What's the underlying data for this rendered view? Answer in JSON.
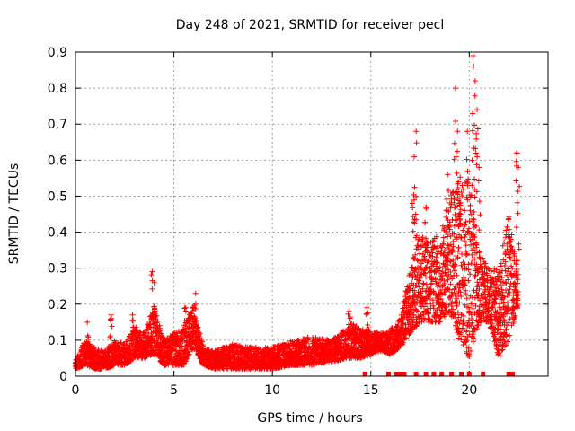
{
  "chart_data": {
    "type": "scatter",
    "title": "Day 248 of 2021, SRMTID for receiver pecl",
    "xlabel": "GPS time / hours",
    "ylabel": "SRMTID / TECUs",
    "xlim": [
      0,
      24
    ],
    "ylim": [
      0,
      0.9
    ],
    "grid": true,
    "xticks": [
      "0",
      "5",
      "10",
      "15",
      "20"
    ],
    "yticks": [
      "0",
      "0.1",
      "0.2",
      "0.3",
      "0.4",
      "0.5",
      "0.6",
      "0.7",
      "0.8",
      "0.9"
    ],
    "series_color": "#ff0000",
    "envelope": [
      {
        "x": 0.0,
        "lo": 0.02,
        "hi": 0.05
      },
      {
        "x": 0.5,
        "lo": 0.03,
        "hi": 0.1
      },
      {
        "x": 1.0,
        "lo": 0.02,
        "hi": 0.08
      },
      {
        "x": 1.5,
        "lo": 0.02,
        "hi": 0.07
      },
      {
        "x": 2.0,
        "lo": 0.03,
        "hi": 0.1
      },
      {
        "x": 2.5,
        "lo": 0.03,
        "hi": 0.09
      },
      {
        "x": 3.0,
        "lo": 0.05,
        "hi": 0.14
      },
      {
        "x": 3.5,
        "lo": 0.05,
        "hi": 0.12
      },
      {
        "x": 4.0,
        "lo": 0.06,
        "hi": 0.2
      },
      {
        "x": 4.5,
        "lo": 0.03,
        "hi": 0.1
      },
      {
        "x": 5.0,
        "lo": 0.03,
        "hi": 0.12
      },
      {
        "x": 5.5,
        "lo": 0.03,
        "hi": 0.14
      },
      {
        "x": 6.0,
        "lo": 0.08,
        "hi": 0.2
      },
      {
        "x": 6.5,
        "lo": 0.03,
        "hi": 0.08
      },
      {
        "x": 7.0,
        "lo": 0.02,
        "hi": 0.07
      },
      {
        "x": 8.0,
        "lo": 0.02,
        "hi": 0.09
      },
      {
        "x": 9.0,
        "lo": 0.02,
        "hi": 0.08
      },
      {
        "x": 10.0,
        "lo": 0.02,
        "hi": 0.08
      },
      {
        "x": 11.0,
        "lo": 0.03,
        "hi": 0.1
      },
      {
        "x": 12.0,
        "lo": 0.03,
        "hi": 0.11
      },
      {
        "x": 13.0,
        "lo": 0.04,
        "hi": 0.1
      },
      {
        "x": 14.0,
        "lo": 0.05,
        "hi": 0.15
      },
      {
        "x": 14.5,
        "lo": 0.05,
        "hi": 0.13
      },
      {
        "x": 15.0,
        "lo": 0.06,
        "hi": 0.13
      },
      {
        "x": 15.5,
        "lo": 0.07,
        "hi": 0.12
      },
      {
        "x": 16.0,
        "lo": 0.06,
        "hi": 0.13
      },
      {
        "x": 16.5,
        "lo": 0.08,
        "hi": 0.16
      },
      {
        "x": 17.0,
        "lo": 0.12,
        "hi": 0.3
      },
      {
        "x": 17.5,
        "lo": 0.15,
        "hi": 0.4
      },
      {
        "x": 18.0,
        "lo": 0.15,
        "hi": 0.38
      },
      {
        "x": 18.5,
        "lo": 0.15,
        "hi": 0.4
      },
      {
        "x": 19.0,
        "lo": 0.18,
        "hi": 0.5
      },
      {
        "x": 19.5,
        "lo": 0.1,
        "hi": 0.55
      },
      {
        "x": 20.0,
        "lo": 0.05,
        "hi": 0.6
      },
      {
        "x": 20.5,
        "lo": 0.15,
        "hi": 0.35
      },
      {
        "x": 21.0,
        "lo": 0.15,
        "hi": 0.3
      },
      {
        "x": 21.5,
        "lo": 0.05,
        "hi": 0.3
      },
      {
        "x": 22.0,
        "lo": 0.1,
        "hi": 0.45
      },
      {
        "x": 22.5,
        "lo": 0.2,
        "hi": 0.3
      }
    ],
    "spikes": [
      {
        "x": 0.6,
        "y": 0.15
      },
      {
        "x": 1.8,
        "y": 0.17
      },
      {
        "x": 2.9,
        "y": 0.17
      },
      {
        "x": 3.9,
        "y": 0.29
      },
      {
        "x": 4.0,
        "y": 0.26
      },
      {
        "x": 6.1,
        "y": 0.23
      },
      {
        "x": 5.6,
        "y": 0.19
      },
      {
        "x": 13.9,
        "y": 0.18
      },
      {
        "x": 14.8,
        "y": 0.19
      },
      {
        "x": 17.1,
        "y": 0.48
      },
      {
        "x": 17.2,
        "y": 0.61
      },
      {
        "x": 17.3,
        "y": 0.68
      },
      {
        "x": 17.8,
        "y": 0.47
      },
      {
        "x": 18.9,
        "y": 0.56
      },
      {
        "x": 19.3,
        "y": 0.8
      },
      {
        "x": 19.4,
        "y": 0.68
      },
      {
        "x": 19.5,
        "y": 0.48
      },
      {
        "x": 19.9,
        "y": 0.68
      },
      {
        "x": 20.2,
        "y": 0.89
      },
      {
        "x": 20.3,
        "y": 0.82
      },
      {
        "x": 20.4,
        "y": 0.74
      },
      {
        "x": 20.5,
        "y": 0.58
      },
      {
        "x": 22.4,
        "y": 0.62
      },
      {
        "x": 22.5,
        "y": 0.58
      }
    ],
    "gap_markers_x": [
      14.7,
      15.9,
      16.3,
      16.5,
      16.7,
      17.3,
      17.8,
      18.2,
      18.6,
      19.1,
      19.6,
      20.0,
      20.7,
      22.0,
      22.2
    ]
  }
}
